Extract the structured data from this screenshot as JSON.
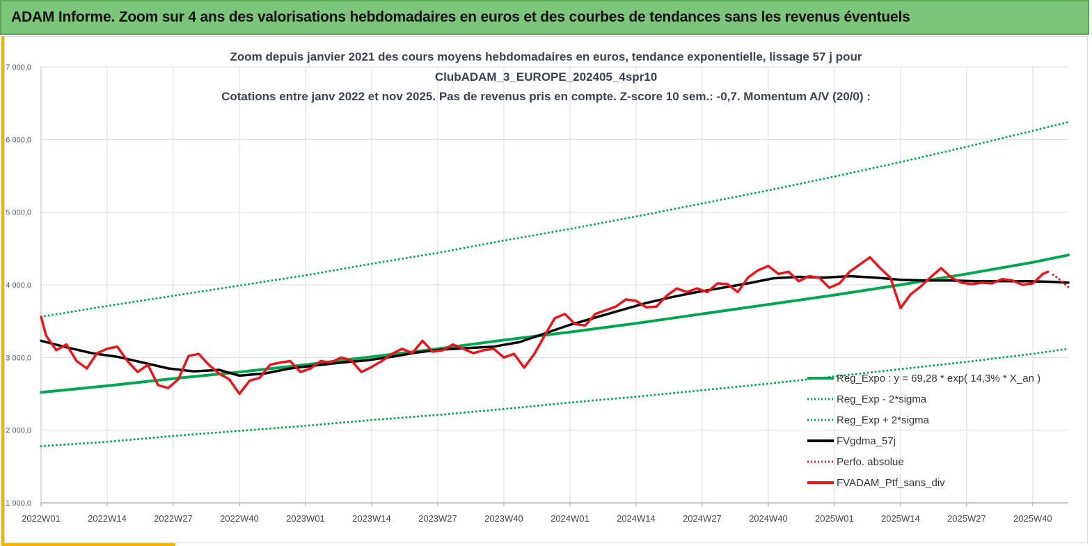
{
  "banner": {
    "title": "ADAM Informe. Zoom sur 4 ans des valorisations hebdomadaires en euros et des courbes de tendances sans les revenus éventuels"
  },
  "colors": {
    "banner_bg": "#7dc57a",
    "accent_gold": "#f0b400",
    "trend_green": "#00a650",
    "ma_black": "#000000",
    "portfolio_red": "#e8151b"
  },
  "chart_data": {
    "type": "line",
    "title_lines": [
      "Zoom depuis janvier 2021 des cours moyens hebdomadaires en euros, tendance exponentielle, lissage 57 j pour",
      "ClubADAM_3_EUROPE_202405_4spr10",
      "Cotations entre janv 2022 et nov 2025. Pas de revenus pris en compte. Z-score 10 sem.: -0,7. Momentum A/V (20/0) :"
    ],
    "ylim": [
      1000,
      7000
    ],
    "yticks": [
      1000,
      2000,
      3000,
      4000,
      5000,
      6000,
      7000
    ],
    "ytick_labels": [
      "1 000,0",
      "2 000,0",
      "3 000,0",
      "4 000,0",
      "5 000,0",
      "6 000,0",
      "7 000,0"
    ],
    "x_range_weeks": [
      1,
      203
    ],
    "xticks": [
      1,
      14,
      27,
      40,
      53,
      66,
      79,
      92,
      105,
      118,
      131,
      144,
      157,
      170,
      183,
      196
    ],
    "xtick_labels": [
      "2022W01",
      "2022W14",
      "2022W27",
      "2022W40",
      "2023W01",
      "2023W14",
      "2023W27",
      "2023W40",
      "2024W01",
      "2024W14",
      "2024W27",
      "2024W40",
      "2025W01",
      "2025W14",
      "2025W27",
      "2025W40"
    ],
    "grid": true,
    "legend_position": "bottom-right",
    "series": [
      {
        "name": "Reg_Expo : y = 69,28 * exp( 14,3% * X_an )",
        "style": "solid",
        "color": "#00a650",
        "x": [
          1,
          14,
          27,
          40,
          53,
          66,
          79,
          92,
          105,
          118,
          131,
          144,
          157,
          170,
          183,
          196,
          203
        ],
        "values": [
          2520,
          2610,
          2710,
          2800,
          2900,
          3010,
          3120,
          3240,
          3350,
          3470,
          3600,
          3730,
          3860,
          4000,
          4150,
          4310,
          4410
        ]
      },
      {
        "name": "Reg_Exp - 2*sigma",
        "style": "dotted",
        "color": "#00a650",
        "x": [
          1,
          14,
          27,
          40,
          53,
          66,
          79,
          92,
          105,
          118,
          131,
          144,
          157,
          170,
          183,
          196,
          203
        ],
        "values": [
          1780,
          1840,
          1920,
          1990,
          2060,
          2140,
          2210,
          2290,
          2380,
          2460,
          2550,
          2640,
          2740,
          2840,
          2940,
          3050,
          3120
        ]
      },
      {
        "name": "Reg_Exp + 2*sigma",
        "style": "dotted",
        "color": "#00a650",
        "x": [
          1,
          14,
          27,
          40,
          53,
          66,
          79,
          92,
          105,
          118,
          131,
          144,
          157,
          170,
          183,
          196,
          203
        ],
        "values": [
          3560,
          3710,
          3850,
          3990,
          4130,
          4290,
          4440,
          4610,
          4770,
          4940,
          5120,
          5300,
          5490,
          5690,
          5900,
          6120,
          6240
        ]
      },
      {
        "name": "FVgdma_57j",
        "style": "solid",
        "color": "#000000",
        "x": [
          1,
          6,
          11,
          16,
          21,
          26,
          31,
          36,
          40,
          45,
          50,
          55,
          60,
          65,
          70,
          75,
          80,
          85,
          90,
          95,
          100,
          105,
          110,
          115,
          120,
          125,
          130,
          135,
          140,
          145,
          150,
          155,
          160,
          165,
          170,
          175,
          180,
          185,
          190,
          195,
          200,
          203
        ],
        "values": [
          3230,
          3140,
          3060,
          3010,
          2930,
          2850,
          2810,
          2830,
          2750,
          2780,
          2850,
          2890,
          2930,
          2960,
          3010,
          3070,
          3110,
          3130,
          3150,
          3210,
          3330,
          3450,
          3550,
          3650,
          3750,
          3830,
          3900,
          3960,
          4020,
          4090,
          4110,
          4100,
          4120,
          4100,
          4070,
          4060,
          4060,
          4050,
          4050,
          4050,
          4040,
          4030
        ]
      },
      {
        "name": "Perfo. absolue",
        "style": "dotted",
        "color": "#e8151b",
        "x": [
          200,
          201,
          202,
          203
        ],
        "values": [
          4140,
          4090,
          4030,
          3970
        ]
      },
      {
        "name": "FVADAM_Ptf_sans_div",
        "style": "solid",
        "color": "#e8151b",
        "x": [
          1,
          2,
          4,
          6,
          8,
          10,
          12,
          14,
          16,
          18,
          20,
          22,
          24,
          26,
          28,
          30,
          32,
          34,
          36,
          38,
          40,
          42,
          44,
          46,
          48,
          50,
          52,
          54,
          56,
          58,
          60,
          62,
          64,
          66,
          68,
          70,
          72,
          74,
          76,
          78,
          80,
          82,
          84,
          86,
          88,
          90,
          92,
          94,
          96,
          98,
          100,
          102,
          104,
          106,
          108,
          110,
          112,
          114,
          116,
          118,
          120,
          122,
          124,
          126,
          128,
          130,
          132,
          134,
          136,
          138,
          140,
          142,
          144,
          146,
          148,
          150,
          152,
          154,
          156,
          158,
          160,
          162,
          164,
          166,
          168,
          170,
          172,
          174,
          176,
          178,
          180,
          182,
          184,
          186,
          188,
          190,
          192,
          194,
          196,
          198,
          199
        ],
        "values": [
          3560,
          3300,
          3100,
          3180,
          2950,
          2850,
          3060,
          3120,
          3150,
          2950,
          2800,
          2900,
          2620,
          2580,
          2700,
          3020,
          3050,
          2900,
          2780,
          2700,
          2500,
          2680,
          2720,
          2900,
          2930,
          2950,
          2800,
          2850,
          2950,
          2930,
          3000,
          2960,
          2800,
          2870,
          2950,
          3050,
          3120,
          3060,
          3230,
          3080,
          3100,
          3180,
          3120,
          3060,
          3100,
          3120,
          3000,
          3050,
          2860,
          3050,
          3300,
          3540,
          3600,
          3460,
          3440,
          3600,
          3650,
          3700,
          3800,
          3780,
          3690,
          3700,
          3850,
          3950,
          3900,
          3950,
          3900,
          4020,
          4010,
          3900,
          4100,
          4200,
          4260,
          4150,
          4180,
          4050,
          4120,
          4100,
          3960,
          4020,
          4180,
          4280,
          4380,
          4230,
          4100,
          3680,
          3870,
          3980,
          4110,
          4230,
          4100,
          4030,
          4010,
          4030,
          4020,
          4080,
          4060,
          4000,
          4020,
          4150,
          4180
        ]
      }
    ]
  }
}
